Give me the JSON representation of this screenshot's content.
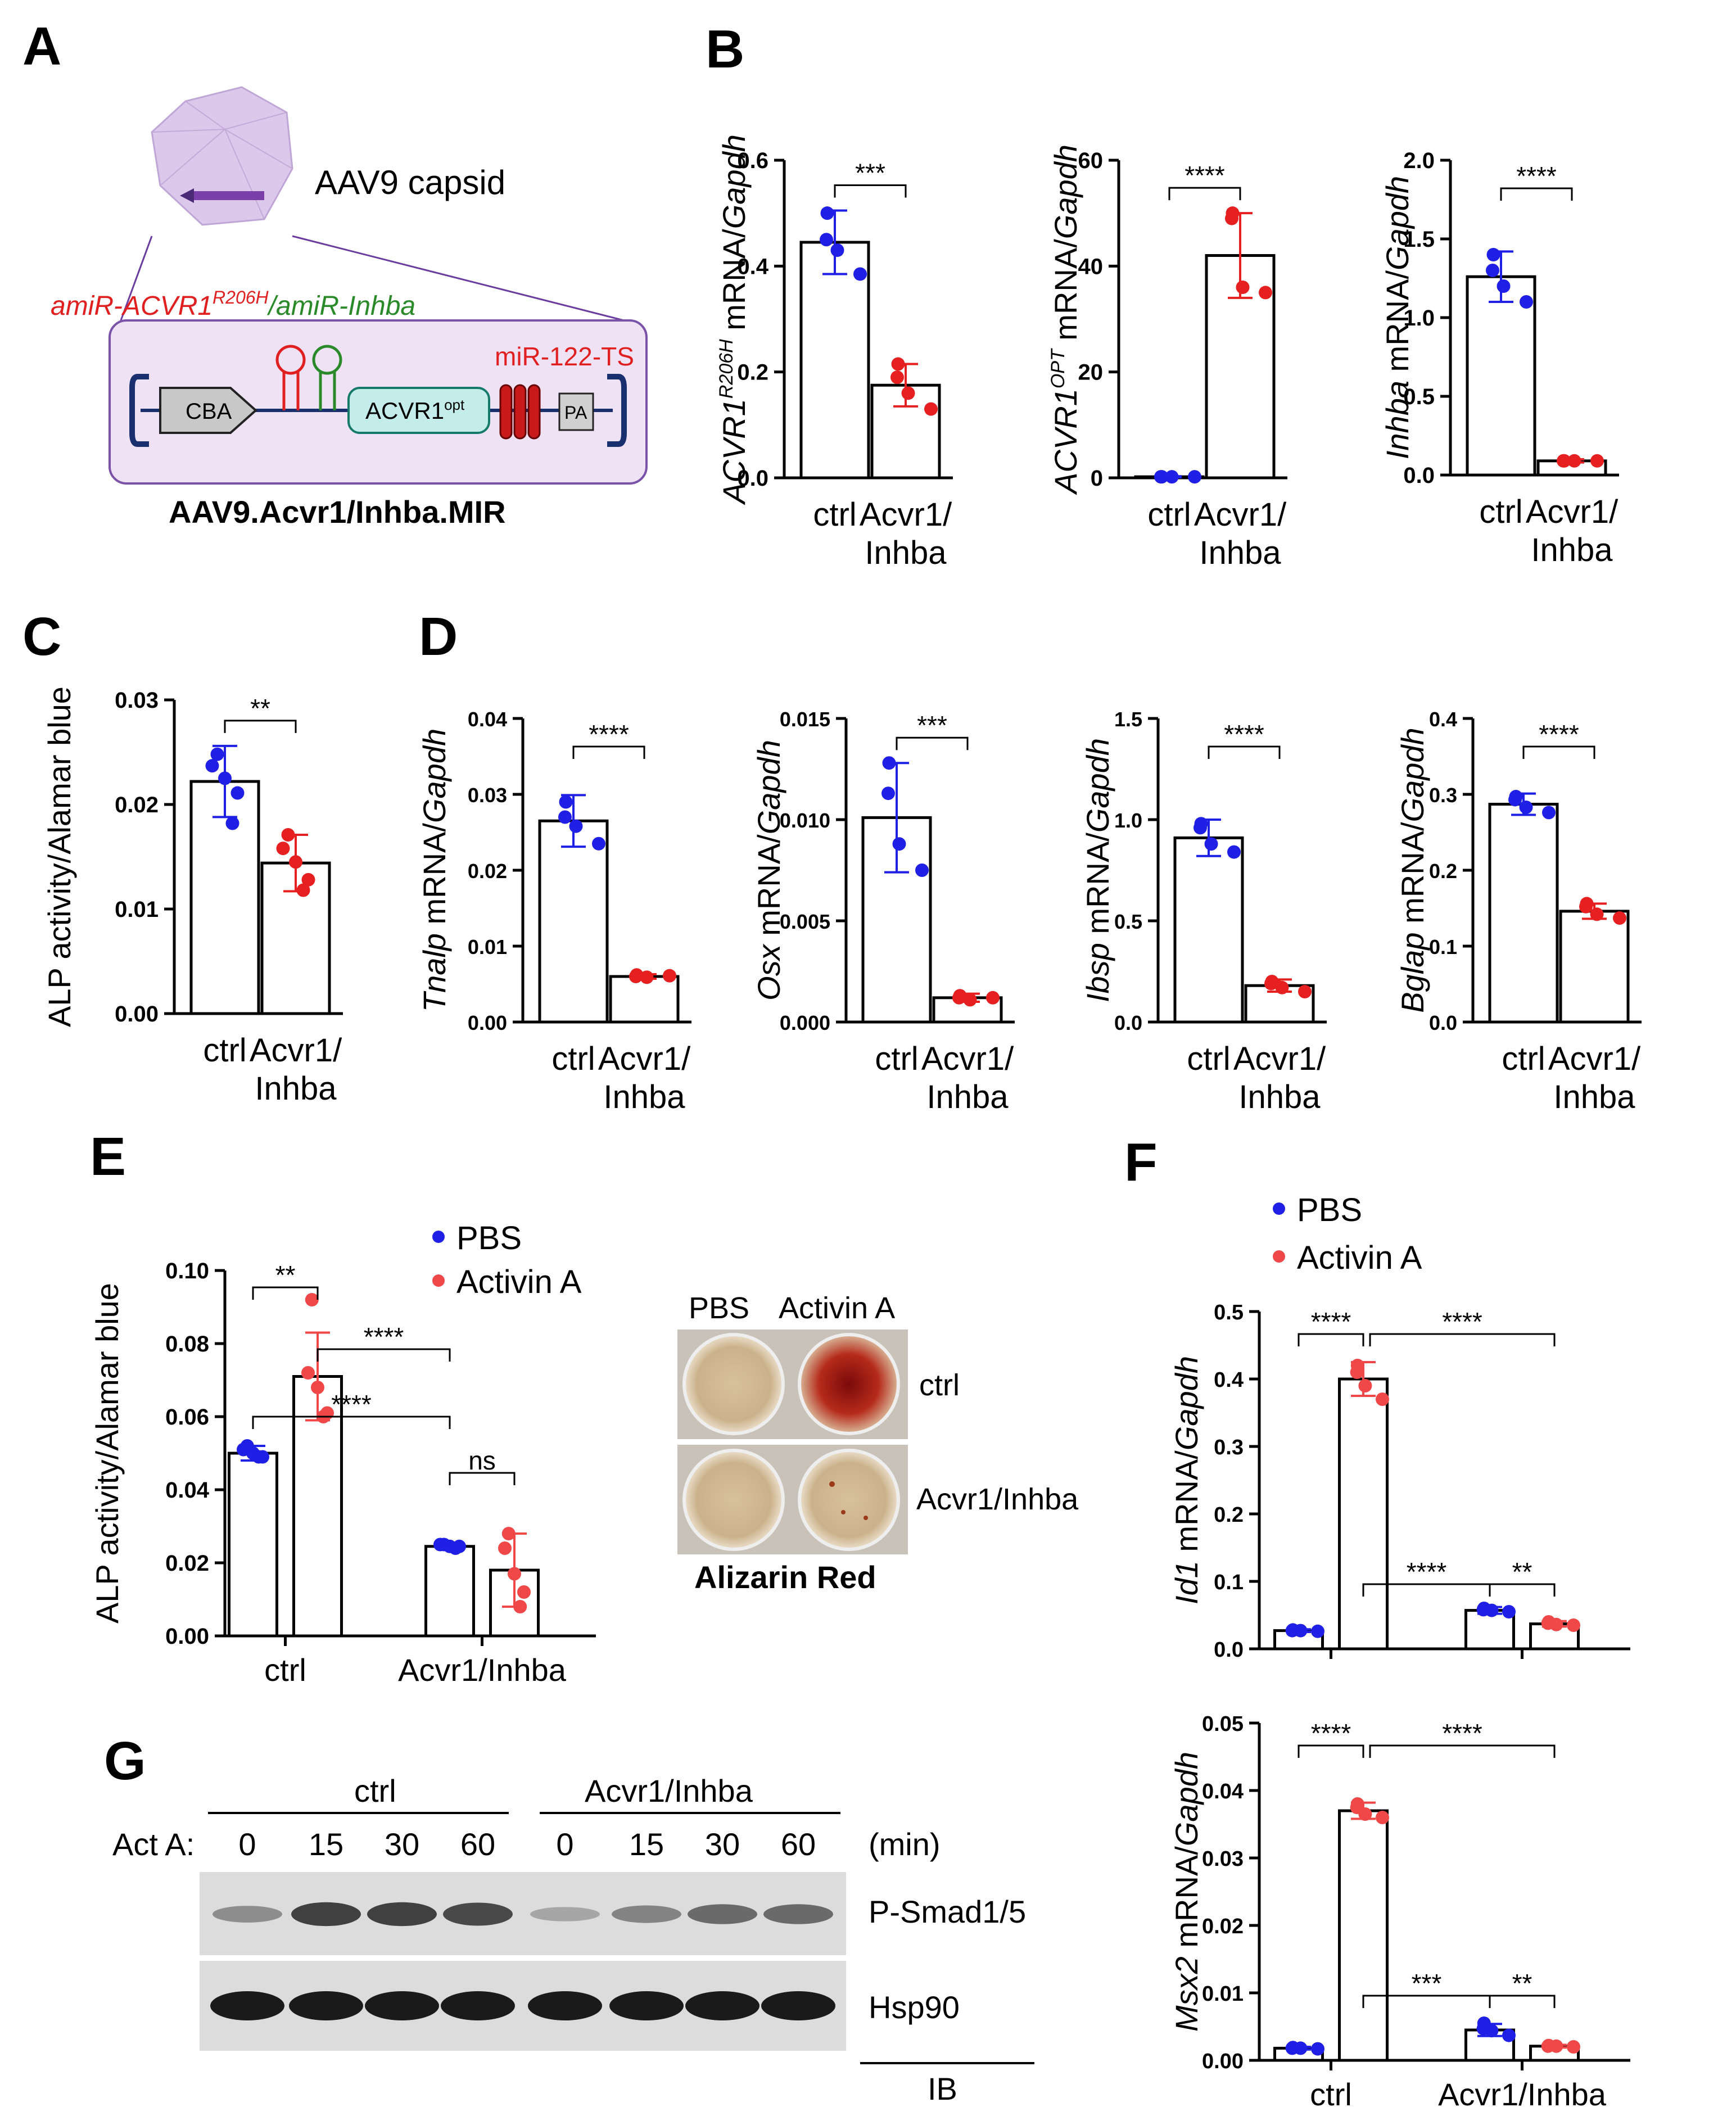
{
  "colors": {
    "ctrl_dot": "#1f1fe6",
    "treat_dot": "#e62020",
    "pbs": "#1f1fe6",
    "activin": "#f04848",
    "capsid": "#d8c4e8",
    "construct_bg": "#efe2f4"
  },
  "panel_letters": [
    "A",
    "B",
    "C",
    "D",
    "E",
    "F",
    "G"
  ],
  "panel_a": {
    "capsid_label": "AAV9 capsid",
    "amir_red": "amiR-ACVR1",
    "amir_sup": "R206H",
    "amir_green": "/amiR-Inhba",
    "promoter": "CBA",
    "gene": "ACVR1",
    "gene_sup": "opt",
    "target_sites": "miR-122-TS",
    "polya": "PA",
    "vector_name": "AAV9.Acvr1/Inhba.MIR"
  },
  "panel_e_images": {
    "col1": "PBS",
    "col2": "Activin A",
    "row1": "ctrl",
    "row2": "Acvr1/Inhba",
    "caption": "Alizarin Red"
  },
  "panel_g": {
    "group1": "ctrl",
    "group2": "Acvr1/Inhba",
    "treatment_label": "Act A:",
    "timepoints": [
      "0",
      "15",
      "30",
      "60",
      "0",
      "15",
      "30",
      "60"
    ],
    "unit": "(min)",
    "band1": "P-Smad1/5",
    "band2": "Hsp90",
    "method": "IB",
    "psmad_intensity": [
      0.35,
      0.8,
      0.8,
      0.75,
      0.2,
      0.4,
      0.55,
      0.55
    ]
  },
  "chart_data": [
    {
      "id": "B1",
      "type": "bar",
      "ylabel_italic": "ACVR1",
      "ylabel_sup": "R206H",
      "ylabel_rest": " mRNA/",
      "ylabel_end": "Gapdh",
      "categories": [
        "ctrl",
        "Acvr1/\nInhba"
      ],
      "ylim": [
        0,
        0.6
      ],
      "yticks": [
        "0.0",
        "0.2",
        "0.4",
        "0.6"
      ],
      "means": [
        0.445,
        0.175
      ],
      "sd": [
        0.06,
        0.04
      ],
      "points": [
        [
          0.5,
          0.45,
          0.43,
          0.385
        ],
        [
          0.215,
          0.19,
          0.16,
          0.13
        ]
      ],
      "sig": "***"
    },
    {
      "id": "B2",
      "type": "bar",
      "ylabel_italic": "ACVR1",
      "ylabel_sup": "OPT",
      "ylabel_rest": " mRNA/",
      "ylabel_end": "Gapdh",
      "categories": [
        "ctrl",
        "Acvr1/\nInhba"
      ],
      "ylim": [
        0,
        60
      ],
      "yticks": [
        "0",
        "20",
        "40",
        "60"
      ],
      "means": [
        0.2,
        42
      ],
      "sd": [
        0.1,
        8
      ],
      "points": [
        [
          0.2,
          0.2,
          0.2,
          0.2
        ],
        [
          50,
          49,
          36,
          35
        ]
      ],
      "sig": "****"
    },
    {
      "id": "B3",
      "type": "bar",
      "ylabel_italic": "Inhba",
      "ylabel_rest": " mRNA/",
      "ylabel_end": "Gapdh",
      "categories": [
        "ctrl",
        "Acvr1/\nInhba"
      ],
      "ylim": [
        0,
        2.0
      ],
      "yticks": [
        "0.0",
        "0.5",
        "1.0",
        "1.5",
        "2.0"
      ],
      "means": [
        1.26,
        0.09
      ],
      "sd": [
        0.16,
        0.01
      ],
      "points": [
        [
          1.4,
          1.3,
          1.2,
          1.1
        ],
        [
          0.09,
          0.09,
          0.09,
          0.09
        ]
      ],
      "sig": "****"
    },
    {
      "id": "C",
      "type": "bar",
      "ylabel_plain": "ALP activity/Alamar blue",
      "categories": [
        "ctrl",
        "Acvr1/\nInhba"
      ],
      "ylim": [
        0,
        0.03
      ],
      "yticks": [
        "0.00",
        "0.01",
        "0.02",
        "0.03"
      ],
      "means": [
        0.0222,
        0.0144
      ],
      "sd": [
        0.0034,
        0.0027
      ],
      "points": [
        [
          0.0248,
          0.0237,
          0.0225,
          0.0211,
          0.0182
        ],
        [
          0.0171,
          0.0158,
          0.0145,
          0.0128,
          0.0118
        ]
      ],
      "sig": "**"
    },
    {
      "id": "D1",
      "type": "bar",
      "ylabel_italic": "Tnalp",
      "ylabel_rest": " mRNA/",
      "ylabel_end": "Gapdh",
      "categories": [
        "ctrl",
        "Acvr1/\nInhba"
      ],
      "ylim": [
        0,
        0.04
      ],
      "yticks": [
        "0.00",
        "0.01",
        "0.02",
        "0.03",
        "0.04"
      ],
      "means": [
        0.0265,
        0.006
      ],
      "sd": [
        0.0034,
        0.0003
      ],
      "points": [
        [
          0.029,
          0.027,
          0.0258,
          0.0235
        ],
        [
          0.0062,
          0.006,
          0.0059,
          0.0061
        ]
      ],
      "sig": "****"
    },
    {
      "id": "D2",
      "type": "bar",
      "ylabel_italic": "Osx",
      "ylabel_rest": " mRNA/",
      "ylabel_end": "Gapdh",
      "categories": [
        "ctrl",
        "Acvr1/\nInhba"
      ],
      "ylim": [
        0,
        0.015
      ],
      "yticks": [
        "0.000",
        "0.005",
        "0.010",
        "0.015"
      ],
      "means": [
        0.0101,
        0.0012
      ],
      "sd": [
        0.0027,
        0.0002
      ],
      "points": [
        [
          0.0128,
          0.0113,
          0.0088,
          0.0075
        ],
        [
          0.0013,
          0.0012,
          0.0011,
          0.0012
        ]
      ],
      "sig": "***"
    },
    {
      "id": "D3",
      "type": "bar",
      "ylabel_italic": "Ibsp",
      "ylabel_rest": " mRNA/",
      "ylabel_end": "Gapdh",
      "categories": [
        "ctrl",
        "Acvr1/\nInhba"
      ],
      "ylim": [
        0,
        1.5
      ],
      "yticks": [
        "0.0",
        "0.5",
        "1.0",
        "1.5"
      ],
      "means": [
        0.91,
        0.18
      ],
      "sd": [
        0.09,
        0.03
      ],
      "points": [
        [
          0.98,
          0.96,
          0.88,
          0.84
        ],
        [
          0.2,
          0.19,
          0.17,
          0.15
        ]
      ],
      "sig": "****"
    },
    {
      "id": "D4",
      "type": "bar",
      "ylabel_italic": "Bglap",
      "ylabel_rest": " mRNA/",
      "ylabel_end": "Gapdh",
      "categories": [
        "ctrl",
        "Acvr1/\nInhba"
      ],
      "ylim": [
        0,
        0.4
      ],
      "yticks": [
        "0.0",
        "0.1",
        "0.2",
        "0.3",
        "0.4"
      ],
      "means": [
        0.287,
        0.146
      ],
      "sd": [
        0.014,
        0.01
      ],
      "points": [
        [
          0.297,
          0.293,
          0.283,
          0.276
        ],
        [
          0.156,
          0.152,
          0.142,
          0.137
        ]
      ],
      "sig": "****"
    },
    {
      "id": "E",
      "type": "grouped_bar",
      "ylabel_plain": "ALP activity/Alamar blue",
      "groups": [
        "ctrl",
        "Acvr1/Inhba"
      ],
      "series": [
        {
          "name": "PBS",
          "means": [
            0.05,
            0.0245
          ],
          "sd": [
            0.002,
            0.0005
          ],
          "points": [
            [
              0.052,
              0.051,
              0.05,
              0.049,
              0.049
            ],
            [
              0.025,
              0.025,
              0.0245,
              0.0245,
              0.024
            ]
          ]
        },
        {
          "name": "Activin A",
          "means": [
            0.071,
            0.018
          ],
          "sd": [
            0.012,
            0.01
          ],
          "points": [
            [
              0.092,
              0.072,
              0.068,
              0.061,
              0.06
            ],
            [
              0.028,
              0.024,
              0.017,
              0.012,
              0.008
            ]
          ]
        }
      ],
      "ylim": [
        0,
        0.1
      ],
      "yticks": [
        "0.00",
        "0.02",
        "0.04",
        "0.06",
        "0.08",
        "0.10"
      ],
      "comparisons": [
        {
          "label": "**",
          "from": [
            0,
            0
          ],
          "to": [
            0,
            1
          ]
        },
        {
          "label": "****",
          "from": [
            0,
            1
          ],
          "to": [
            1,
            0
          ]
        },
        {
          "label": "****",
          "from": [
            0,
            0
          ],
          "to": [
            1,
            0
          ]
        },
        {
          "label": "ns",
          "from": [
            1,
            0
          ],
          "to": [
            1,
            1
          ]
        }
      ]
    },
    {
      "id": "F1",
      "type": "grouped_bar",
      "ylabel_italic": "Id1",
      "ylabel_rest": " mRNA/",
      "ylabel_end": "Gapdh",
      "groups": [
        "",
        ""
      ],
      "series": [
        {
          "name": "PBS",
          "means": [
            0.027,
            0.057
          ],
          "sd": [
            0.002,
            0.005
          ],
          "points": [
            [
              0.028,
              0.027,
              0.027,
              0.026
            ],
            [
              0.06,
              0.058,
              0.057,
              0.055
            ]
          ]
        },
        {
          "name": "Activin A",
          "means": [
            0.4,
            0.037
          ],
          "sd": [
            0.025,
            0.004
          ],
          "points": [
            [
              0.42,
              0.41,
              0.39,
              0.37
            ],
            [
              0.04,
              0.038,
              0.036,
              0.035
            ]
          ]
        }
      ],
      "ylim": [
        0,
        0.5
      ],
      "yticks": [
        "0.0",
        "0.1",
        "0.2",
        "0.3",
        "0.4",
        "0.5"
      ],
      "comparisons": [
        {
          "label": "****",
          "from": [
            0,
            0
          ],
          "to": [
            0,
            1
          ]
        },
        {
          "label": "****",
          "from": [
            0,
            1
          ],
          "to": [
            1,
            1
          ]
        },
        {
          "label": "****",
          "from": [
            0,
            1
          ],
          "to": [
            1,
            0
          ]
        },
        {
          "label": "**",
          "from": [
            1,
            0
          ],
          "to": [
            1,
            1
          ]
        }
      ]
    },
    {
      "id": "F2",
      "type": "grouped_bar",
      "ylabel_italic": "Msx2",
      "ylabel_rest": " mRNA/",
      "ylabel_end": "Gapdh",
      "groups": [
        "ctrl",
        "Acvr1/Inhba"
      ],
      "series": [
        {
          "name": "PBS",
          "means": [
            0.0018,
            0.0045
          ],
          "sd": [
            0.0002,
            0.0009
          ],
          "points": [
            [
              0.0019,
              0.0018,
              0.0018,
              0.0017
            ],
            [
              0.0055,
              0.0047,
              0.0044,
              0.0037
            ]
          ]
        },
        {
          "name": "Activin A",
          "means": [
            0.037,
            0.0021
          ],
          "sd": [
            0.0012,
            0.0002
          ],
          "points": [
            [
              0.038,
              0.0375,
              0.0365,
              0.036
            ],
            [
              0.0022,
              0.0021,
              0.0021,
              0.002
            ]
          ]
        }
      ],
      "ylim": [
        0,
        0.05
      ],
      "yticks": [
        "0.00",
        "0.01",
        "0.02",
        "0.03",
        "0.04",
        "0.05"
      ],
      "comparisons": [
        {
          "label": "****",
          "from": [
            0,
            0
          ],
          "to": [
            0,
            1
          ]
        },
        {
          "label": "****",
          "from": [
            0,
            1
          ],
          "to": [
            1,
            1
          ]
        },
        {
          "label": "***",
          "from": [
            0,
            1
          ],
          "to": [
            1,
            0
          ]
        },
        {
          "label": "**",
          "from": [
            1,
            0
          ],
          "to": [
            1,
            1
          ]
        }
      ]
    }
  ],
  "legend": {
    "pbs": "PBS",
    "activin": "Activin A"
  }
}
